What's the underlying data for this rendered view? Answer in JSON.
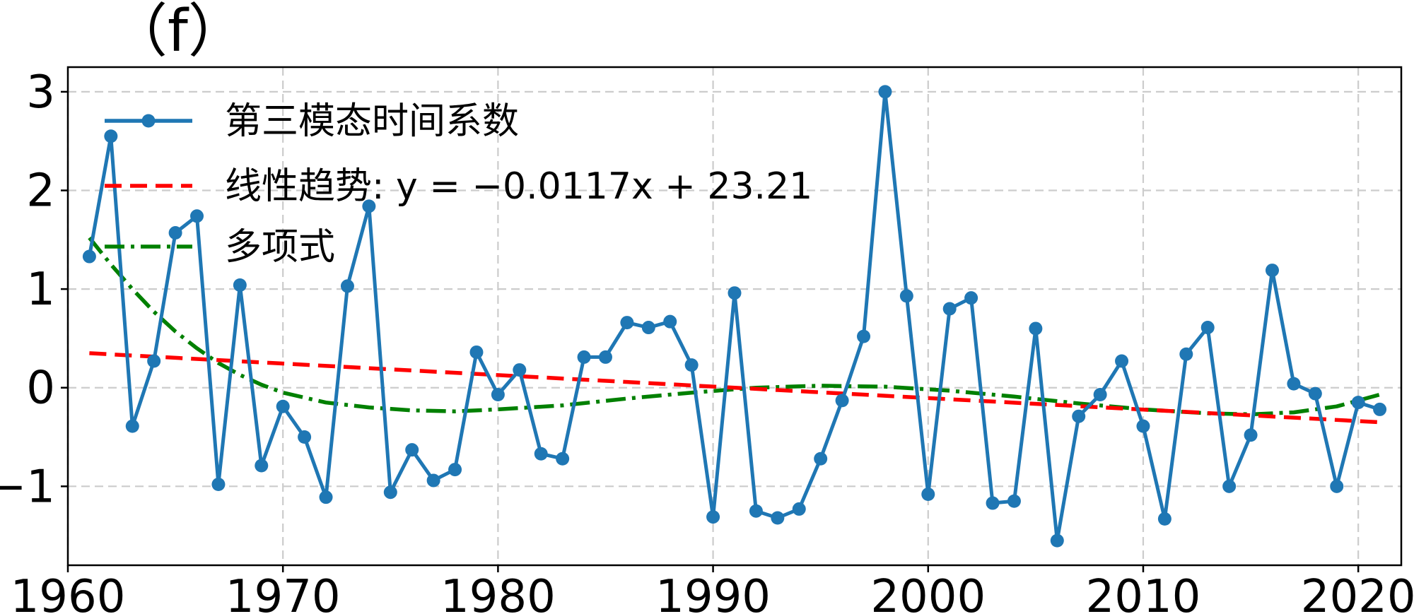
{
  "chart_data": {
    "type": "line",
    "title": "（f）",
    "xlabel": "",
    "ylabel": "",
    "xlim": [
      1960,
      2022
    ],
    "ylim": [
      -1.8,
      3.25
    ],
    "xticks": [
      1960,
      1970,
      1980,
      1990,
      2000,
      2010,
      2020
    ],
    "xtick_labels": [
      "1960",
      "1970",
      "1980",
      "1990",
      "2000",
      "2010",
      "2020"
    ],
    "yticks": [
      -1,
      0,
      1,
      2,
      3
    ],
    "ytick_labels": [
      "−1",
      "0",
      "1",
      "2",
      "3"
    ],
    "grid": true,
    "legend_position": "upper-left",
    "series": [
      {
        "name": "第三模态时间系数",
        "style": "solid-markers",
        "color": "#1f77b4",
        "x": [
          1961,
          1962,
          1963,
          1964,
          1965,
          1966,
          1967,
          1968,
          1969,
          1970,
          1971,
          1972,
          1973,
          1974,
          1975,
          1976,
          1977,
          1978,
          1979,
          1980,
          1981,
          1982,
          1983,
          1984,
          1985,
          1986,
          1987,
          1988,
          1989,
          1990,
          1991,
          1992,
          1993,
          1994,
          1995,
          1996,
          1997,
          1998,
          1999,
          2000,
          2001,
          2002,
          2003,
          2004,
          2005,
          2006,
          2007,
          2008,
          2009,
          2010,
          2011,
          2012,
          2013,
          2014,
          2015,
          2016,
          2017,
          2018,
          2019,
          2020,
          2021
        ],
        "values": [
          1.33,
          2.55,
          -0.39,
          0.27,
          1.57,
          1.74,
          -0.98,
          1.04,
          -0.79,
          -0.19,
          -0.5,
          -1.11,
          1.03,
          1.84,
          -1.06,
          -0.63,
          -0.94,
          -0.83,
          0.36,
          -0.07,
          0.18,
          -0.67,
          -0.72,
          0.31,
          0.31,
          0.66,
          0.61,
          0.67,
          0.23,
          -1.31,
          0.96,
          -1.25,
          -1.32,
          -1.23,
          -0.72,
          -0.13,
          0.52,
          3.0,
          0.93,
          -1.08,
          0.8,
          0.91,
          -1.17,
          -1.15,
          0.6,
          -1.55,
          -0.29,
          -0.07,
          0.27,
          -0.39,
          -1.33,
          0.34,
          0.61,
          -1.0,
          -0.48,
          1.19,
          0.04,
          -0.06,
          -1.0,
          -0.15,
          -0.22
        ]
      },
      {
        "name": "线性趋势: y = −0.0117x + 23.21",
        "style": "dashed",
        "color": "#ff0000",
        "x": [
          1961,
          2021
        ],
        "values": [
          0.35,
          -0.35
        ]
      },
      {
        "name": "多项式",
        "style": "dash-dot",
        "color": "#008000",
        "x": [
          1961,
          1962,
          1963,
          1964,
          1965,
          1966,
          1967,
          1968,
          1969,
          1970,
          1972,
          1974,
          1976,
          1978,
          1980,
          1983,
          1986,
          1989,
          1992,
          1995,
          1998,
          2001,
          2004,
          2007,
          2010,
          2013,
          2015,
          2017,
          2019,
          2021
        ],
        "values": [
          1.52,
          1.25,
          1.0,
          0.77,
          0.57,
          0.4,
          0.25,
          0.13,
          0.03,
          -0.05,
          -0.15,
          -0.2,
          -0.23,
          -0.24,
          -0.22,
          -0.18,
          -0.11,
          -0.05,
          0.0,
          0.02,
          0.01,
          -0.03,
          -0.09,
          -0.16,
          -0.22,
          -0.26,
          -0.27,
          -0.25,
          -0.19,
          -0.07
        ]
      }
    ]
  }
}
